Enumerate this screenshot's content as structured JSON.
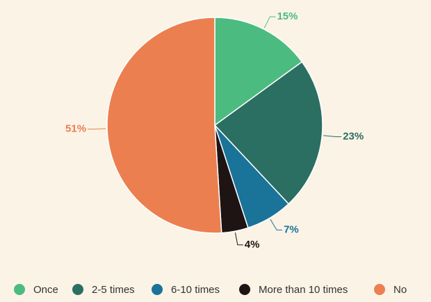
{
  "chart_data": {
    "type": "pie",
    "categories": [
      "Once",
      "2-5 times",
      "6-10 times",
      "More than 10 times",
      "No"
    ],
    "values": [
      15,
      23,
      7,
      4,
      51
    ],
    "value_labels": [
      "15%",
      "23%",
      "7%",
      "4%",
      "51%"
    ],
    "colors": [
      "#4cbb7f",
      "#2b6e62",
      "#1a7398",
      "#1f1414",
      "#ec7f50"
    ],
    "legend": "bottom"
  }
}
